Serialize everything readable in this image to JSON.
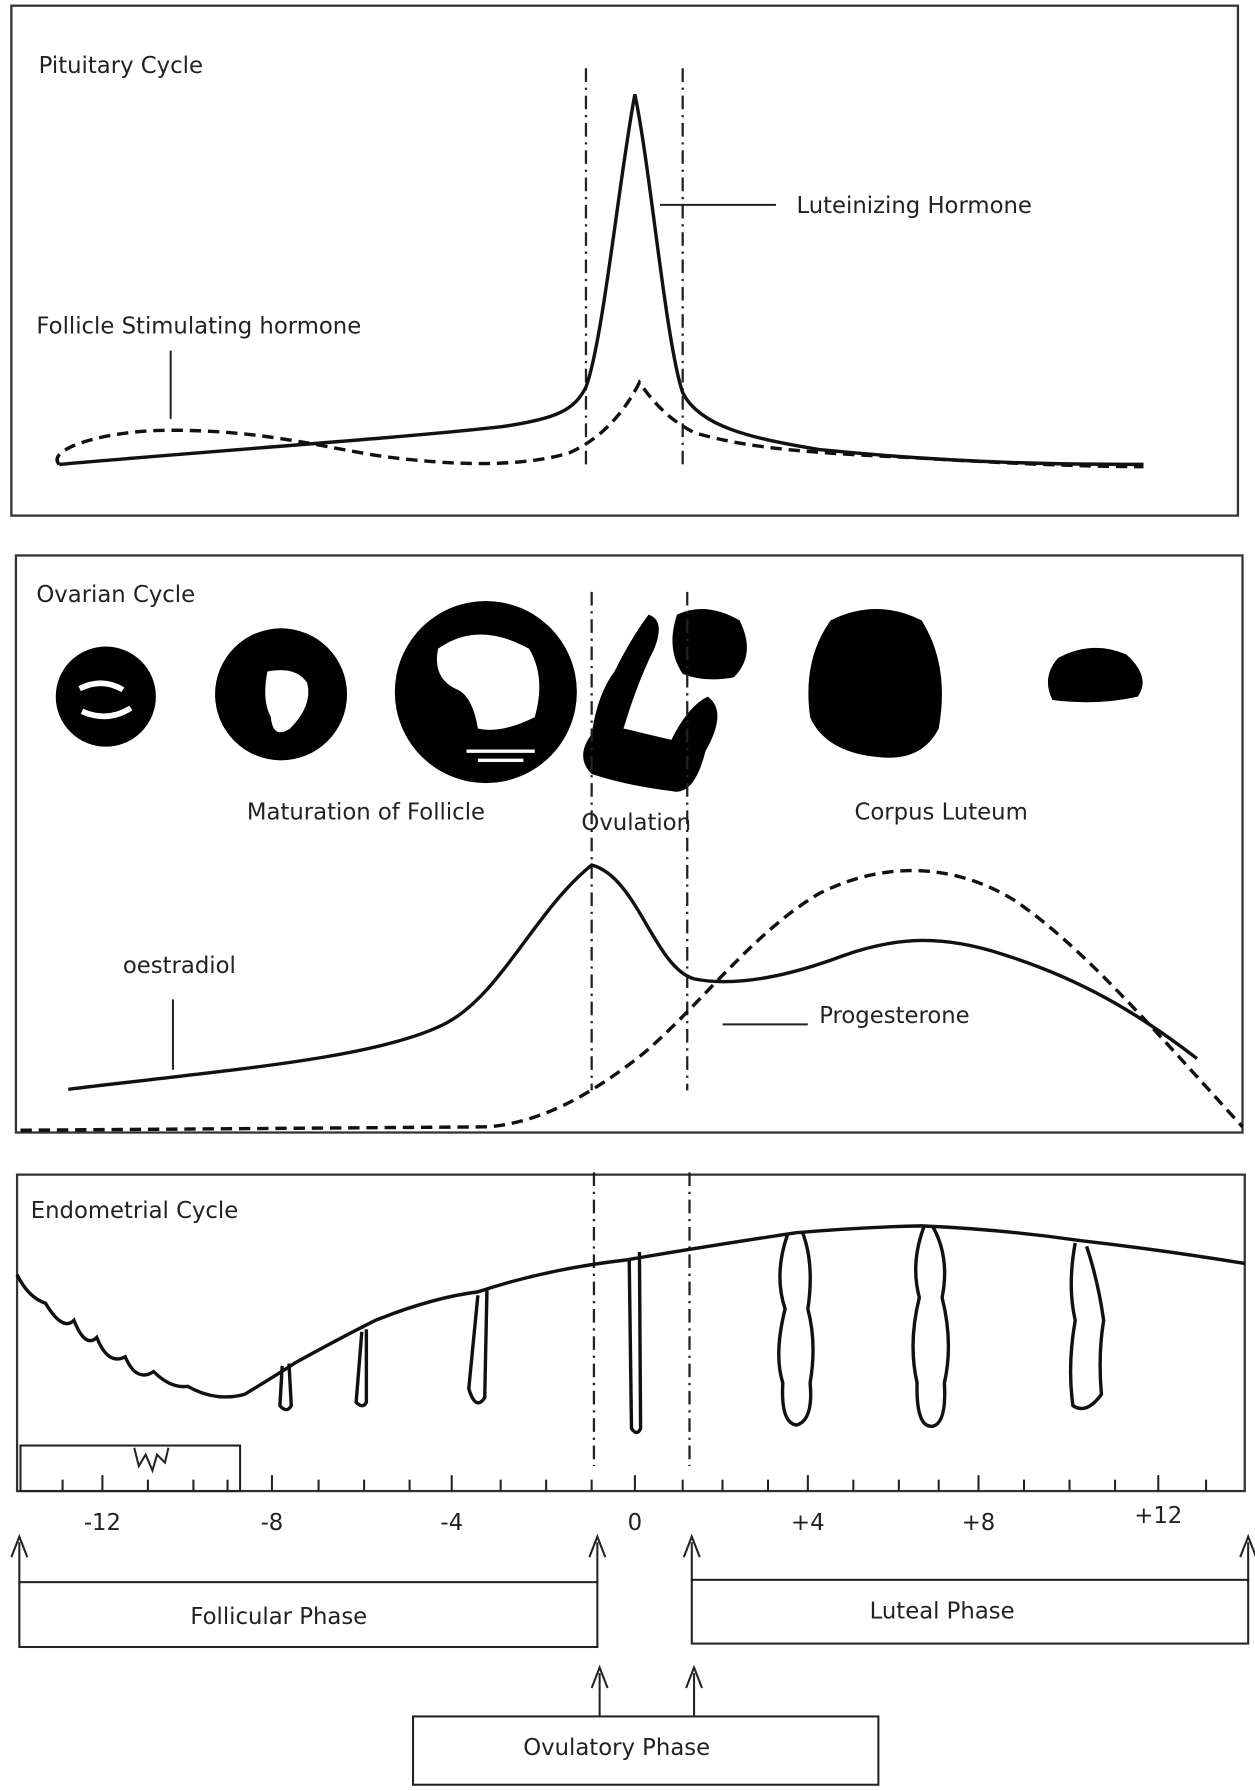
{
  "panels": [
    {
      "title": "Pituitary Cycle",
      "labels": [
        "Luteinizing Hormone",
        "Follicle Stimulating hormone"
      ]
    },
    {
      "title": "Ovarian Cycle",
      "labels": [
        "Maturation of Follicle",
        "Ovulation",
        "Corpus Luteum",
        "oestradiol",
        "Progesterone"
      ]
    },
    {
      "title": "Endometrial Cycle"
    }
  ],
  "axis": {
    "ticks": [
      "-12",
      "-8",
      "-4",
      "0",
      "+4",
      "+8",
      "+12"
    ]
  },
  "phases": [
    "Follicular Phase",
    "Luteal Phase",
    "Ovulatory Phase"
  ]
}
